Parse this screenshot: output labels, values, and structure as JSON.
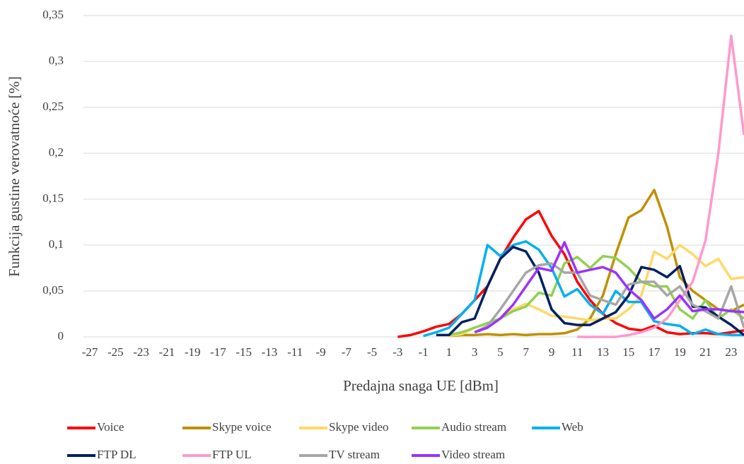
{
  "chart_data": {
    "type": "line",
    "y_label": "Funkcija gustine verovatnoće [%]",
    "x_label": "Predajna snaga UE [dBm]",
    "x": [
      -3,
      -2,
      -1,
      0,
      1,
      2,
      3,
      4,
      5,
      6,
      7,
      8,
      9,
      10,
      11,
      12,
      13,
      14,
      15,
      16,
      17,
      18,
      19,
      20,
      21,
      22,
      23,
      24
    ],
    "xlim": [
      -27.5,
      24
    ],
    "xticks": [
      -27,
      -25,
      -23,
      -21,
      -19,
      -17,
      -15,
      -13,
      -11,
      -9,
      -7,
      -5,
      -3,
      -1,
      1,
      3,
      5,
      7,
      9,
      11,
      13,
      15,
      17,
      19,
      21,
      23
    ],
    "ylim": [
      0,
      0.35
    ],
    "yticks": [
      0,
      {
        "value": 0.05,
        "label": "0,05"
      },
      {
        "value": 0.1,
        "label": "0,1"
      },
      {
        "value": 0.15,
        "label": "0,15"
      },
      {
        "value": 0.2,
        "label": "0,2"
      },
      {
        "value": 0.25,
        "label": "0,25"
      },
      {
        "value": 0.3,
        "label": "0,3"
      },
      {
        "value": 0.35,
        "label": "0,35"
      }
    ],
    "grid": true,
    "legend": "bottom",
    "series": [
      {
        "name": "Voice",
        "color": "#ff0000",
        "values": [
          0,
          0.002,
          0.006,
          0.011,
          0.014,
          0.025,
          0.04,
          0.055,
          0.085,
          0.108,
          0.128,
          0.137,
          0.11,
          0.09,
          0.06,
          0.04,
          0.025,
          0.015,
          0.009,
          0.007,
          0.012,
          0.005,
          0.003,
          0.004,
          0.004,
          0.003,
          0.005,
          0.007
        ]
      },
      {
        "name": "Skype voice",
        "color": "#bf9000",
        "values": [
          null,
          null,
          null,
          null,
          0.001,
          0.002,
          0.002,
          0.003,
          0.002,
          0.003,
          0.002,
          0.003,
          0.003,
          0.004,
          0.008,
          0.02,
          0.045,
          0.09,
          0.13,
          0.138,
          0.16,
          0.12,
          0.065,
          0.05,
          0.04,
          0.03,
          0.028,
          0.035
        ]
      },
      {
        "name": "Skype video",
        "color": "#ffd966",
        "values": [
          null,
          null,
          null,
          null,
          0.001,
          0.003,
          0.01,
          0.015,
          0.02,
          0.03,
          0.036,
          0.03,
          0.023,
          0.022,
          0.02,
          0.018,
          0.02,
          0.02,
          0.03,
          0.045,
          0.093,
          0.085,
          0.1,
          0.09,
          0.077,
          0.085,
          0.063,
          0.065
        ]
      },
      {
        "name": "Audio stream",
        "color": "#92d050",
        "values": [
          null,
          null,
          null,
          null,
          0.002,
          0.005,
          0.01,
          0.015,
          0.02,
          0.028,
          0.033,
          0.048,
          0.045,
          0.08,
          0.087,
          0.075,
          0.088,
          0.086,
          0.075,
          0.06,
          0.055,
          0.055,
          0.03,
          0.02,
          0.04,
          0.02,
          0.03,
          0.02
        ]
      },
      {
        "name": "Web",
        "color": "#00b0f0",
        "values": [
          null,
          null,
          0.001,
          0.005,
          0.01,
          0.025,
          0.04,
          0.1,
          0.088,
          0.1,
          0.104,
          0.095,
          0.075,
          0.044,
          0.052,
          0.035,
          0.025,
          0.05,
          0.038,
          0.038,
          0.017,
          0.014,
          0.012,
          0.003,
          0.008,
          0.003,
          0.002,
          0.002
        ]
      },
      {
        "name": "FTP DL",
        "color": "#002060",
        "values": [
          null,
          null,
          null,
          0.002,
          0.002,
          0.016,
          0.02,
          0.055,
          0.085,
          0.098,
          0.093,
          0.07,
          0.03,
          0.015,
          0.013,
          0.013,
          0.02,
          0.027,
          0.045,
          0.076,
          0.073,
          0.065,
          0.077,
          0.033,
          0.032,
          0.022,
          0.013,
          0.002
        ]
      },
      {
        "name": "FTP UL",
        "color": "#ff99cc",
        "values": [
          null,
          null,
          null,
          null,
          null,
          null,
          null,
          null,
          null,
          null,
          null,
          null,
          null,
          null,
          0,
          0,
          0,
          0,
          0.002,
          0.005,
          0.01,
          0.02,
          0.04,
          0.06,
          0.105,
          0.2,
          0.328,
          0.22
        ]
      },
      {
        "name": "TV stream",
        "color": "#a6a6a6",
        "values": [
          null,
          null,
          null,
          null,
          null,
          null,
          0.005,
          0.012,
          0.03,
          0.05,
          0.07,
          0.078,
          0.08,
          0.07,
          0.07,
          0.045,
          0.04,
          0.035,
          0.057,
          0.06,
          0.06,
          0.045,
          0.055,
          0.035,
          0.028,
          0.02,
          0.055,
          0.01
        ]
      },
      {
        "name": "Video stream",
        "color": "#9933ff",
        "values": [
          null,
          null,
          null,
          null,
          null,
          null,
          0.005,
          0.01,
          0.02,
          0.035,
          0.055,
          0.075,
          0.072,
          0.103,
          0.07,
          0.073,
          0.076,
          0.07,
          0.052,
          0.04,
          0.02,
          0.03,
          0.045,
          0.028,
          0.03,
          0.03,
          0.028,
          0.027
        ]
      }
    ]
  }
}
